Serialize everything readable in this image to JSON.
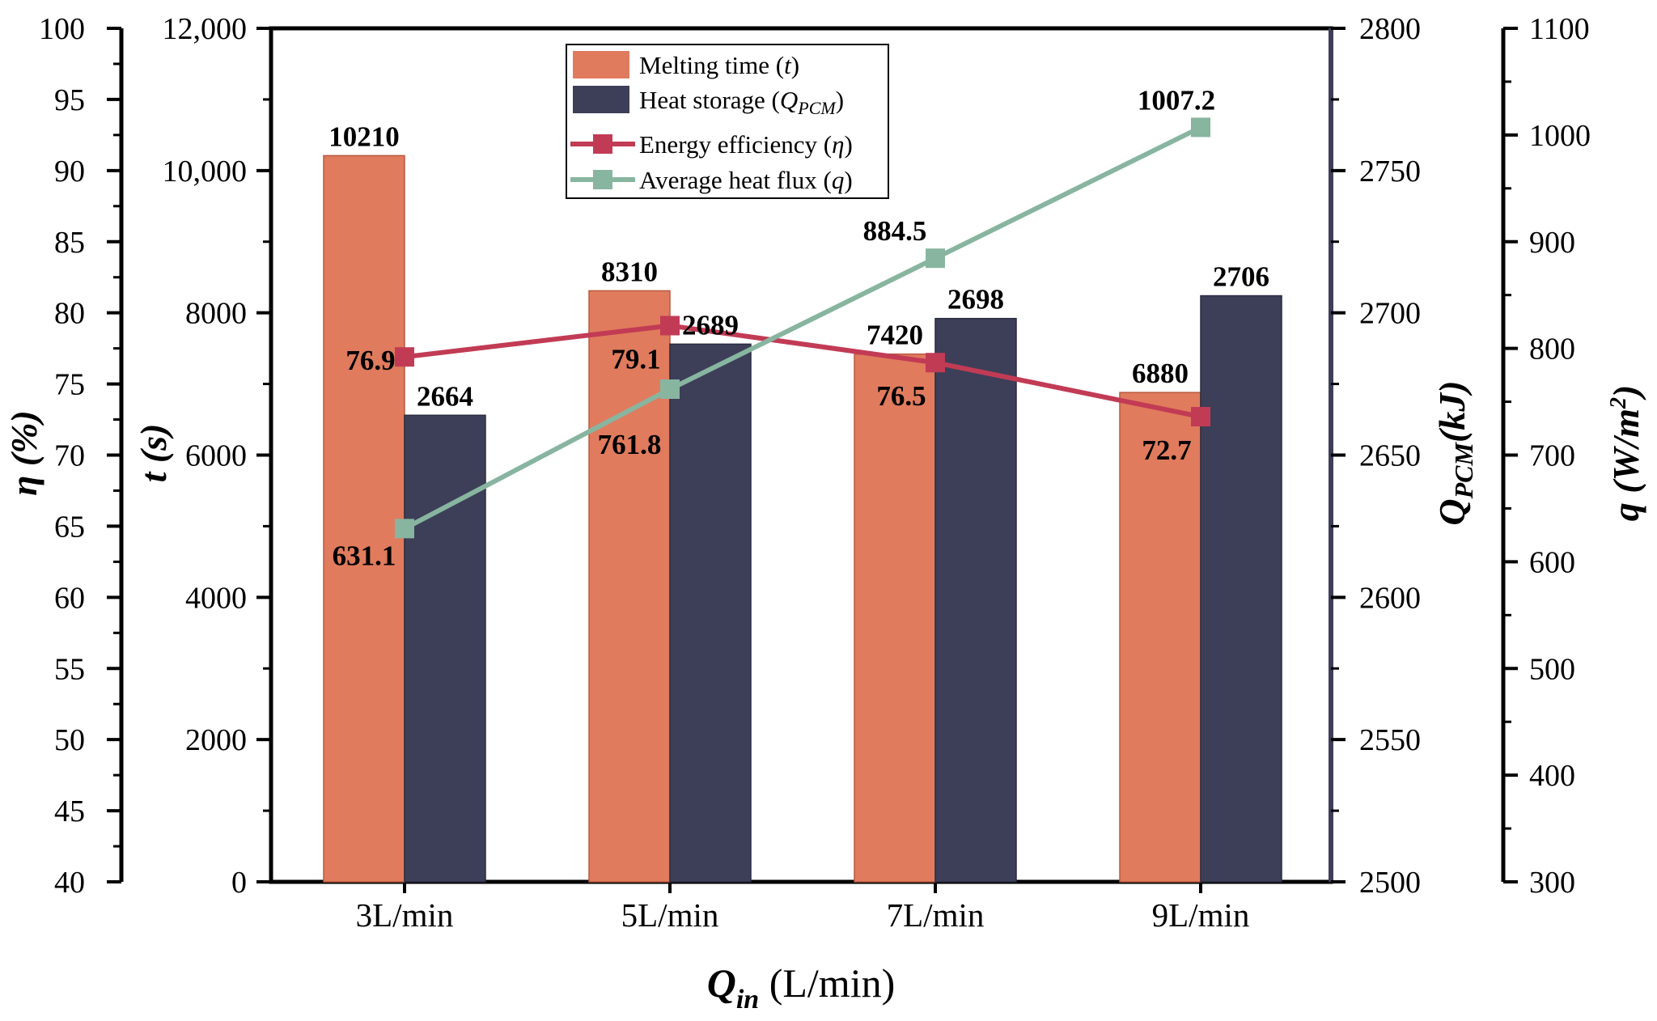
{
  "chart_data": {
    "type": "bar",
    "categories": [
      "3L/min",
      "5L/min",
      "7L/min",
      "9L/min"
    ],
    "xlabel": {
      "main": "Q",
      "sub": "in",
      "unit": " (L/min)"
    },
    "series": [
      {
        "name": "Melting time (t)",
        "kind": "bar",
        "axis": "t",
        "color": "#e07b5d",
        "values": [
          10210,
          8310,
          7420,
          6880
        ],
        "labels": [
          "10210",
          "8310",
          "7420",
          "6880"
        ]
      },
      {
        "name": "Heat storage (QPCM)",
        "kind": "bar",
        "axis": "Q",
        "color": "#3d3f58",
        "values": [
          2664,
          2689,
          2698,
          2706
        ],
        "labels": [
          "2664",
          "2689",
          "2698",
          "2706"
        ]
      },
      {
        "name": "Energy efficiency (η)",
        "kind": "line",
        "axis": "eta",
        "color": "#c23b55",
        "values": [
          76.9,
          79.1,
          76.5,
          72.7
        ],
        "labels": [
          "76.9",
          "79.1",
          "76.5",
          "72.7"
        ]
      },
      {
        "name": "Average heat flux (q)",
        "kind": "line",
        "axis": "q",
        "color": "#88b5a0",
        "values": [
          631.1,
          761.8,
          884.5,
          1007.2
        ],
        "labels": [
          "631.1",
          "761.8",
          "884.5",
          "1007.2"
        ]
      }
    ],
    "axes": {
      "eta": {
        "title": "η (%)",
        "ylim": [
          40,
          100
        ],
        "ticks": [
          "40",
          "45",
          "50",
          "55",
          "60",
          "65",
          "70",
          "75",
          "80",
          "85",
          "90",
          "95",
          "100"
        ]
      },
      "t": {
        "title": "t (s)",
        "ylim": [
          0,
          12000
        ],
        "ticks": [
          "0",
          "2000",
          "4000",
          "6000",
          "8000",
          "10,000",
          "12,000"
        ]
      },
      "Q": {
        "title": {
          "main": "Q",
          "sub": "PCM",
          "unit": "(kJ)"
        },
        "ylim": [
          2500,
          2800
        ],
        "ticks": [
          "2500",
          "2550",
          "2600",
          "2650",
          "2700",
          "2750",
          "2800"
        ]
      },
      "q": {
        "title": {
          "main": "q",
          "unit": "(W/m",
          "sup": "2",
          "close": ")"
        },
        "ylim": [
          300,
          1100
        ],
        "ticks": [
          "300",
          "400",
          "500",
          "600",
          "700",
          "800",
          "900",
          "1000",
          "1100"
        ]
      }
    },
    "legend": {
      "position": "top-center",
      "entries": [
        {
          "text": "Melting time (",
          "var": "t",
          "close": ")"
        },
        {
          "text": "Heat storage (",
          "var": "Q",
          "sub": "PCM",
          "close": ")"
        },
        {
          "text": "Energy efficiency (",
          "var": "η",
          "close": ")"
        },
        {
          "text": "Average heat flux (",
          "var": "q",
          "close": ")"
        }
      ]
    }
  }
}
